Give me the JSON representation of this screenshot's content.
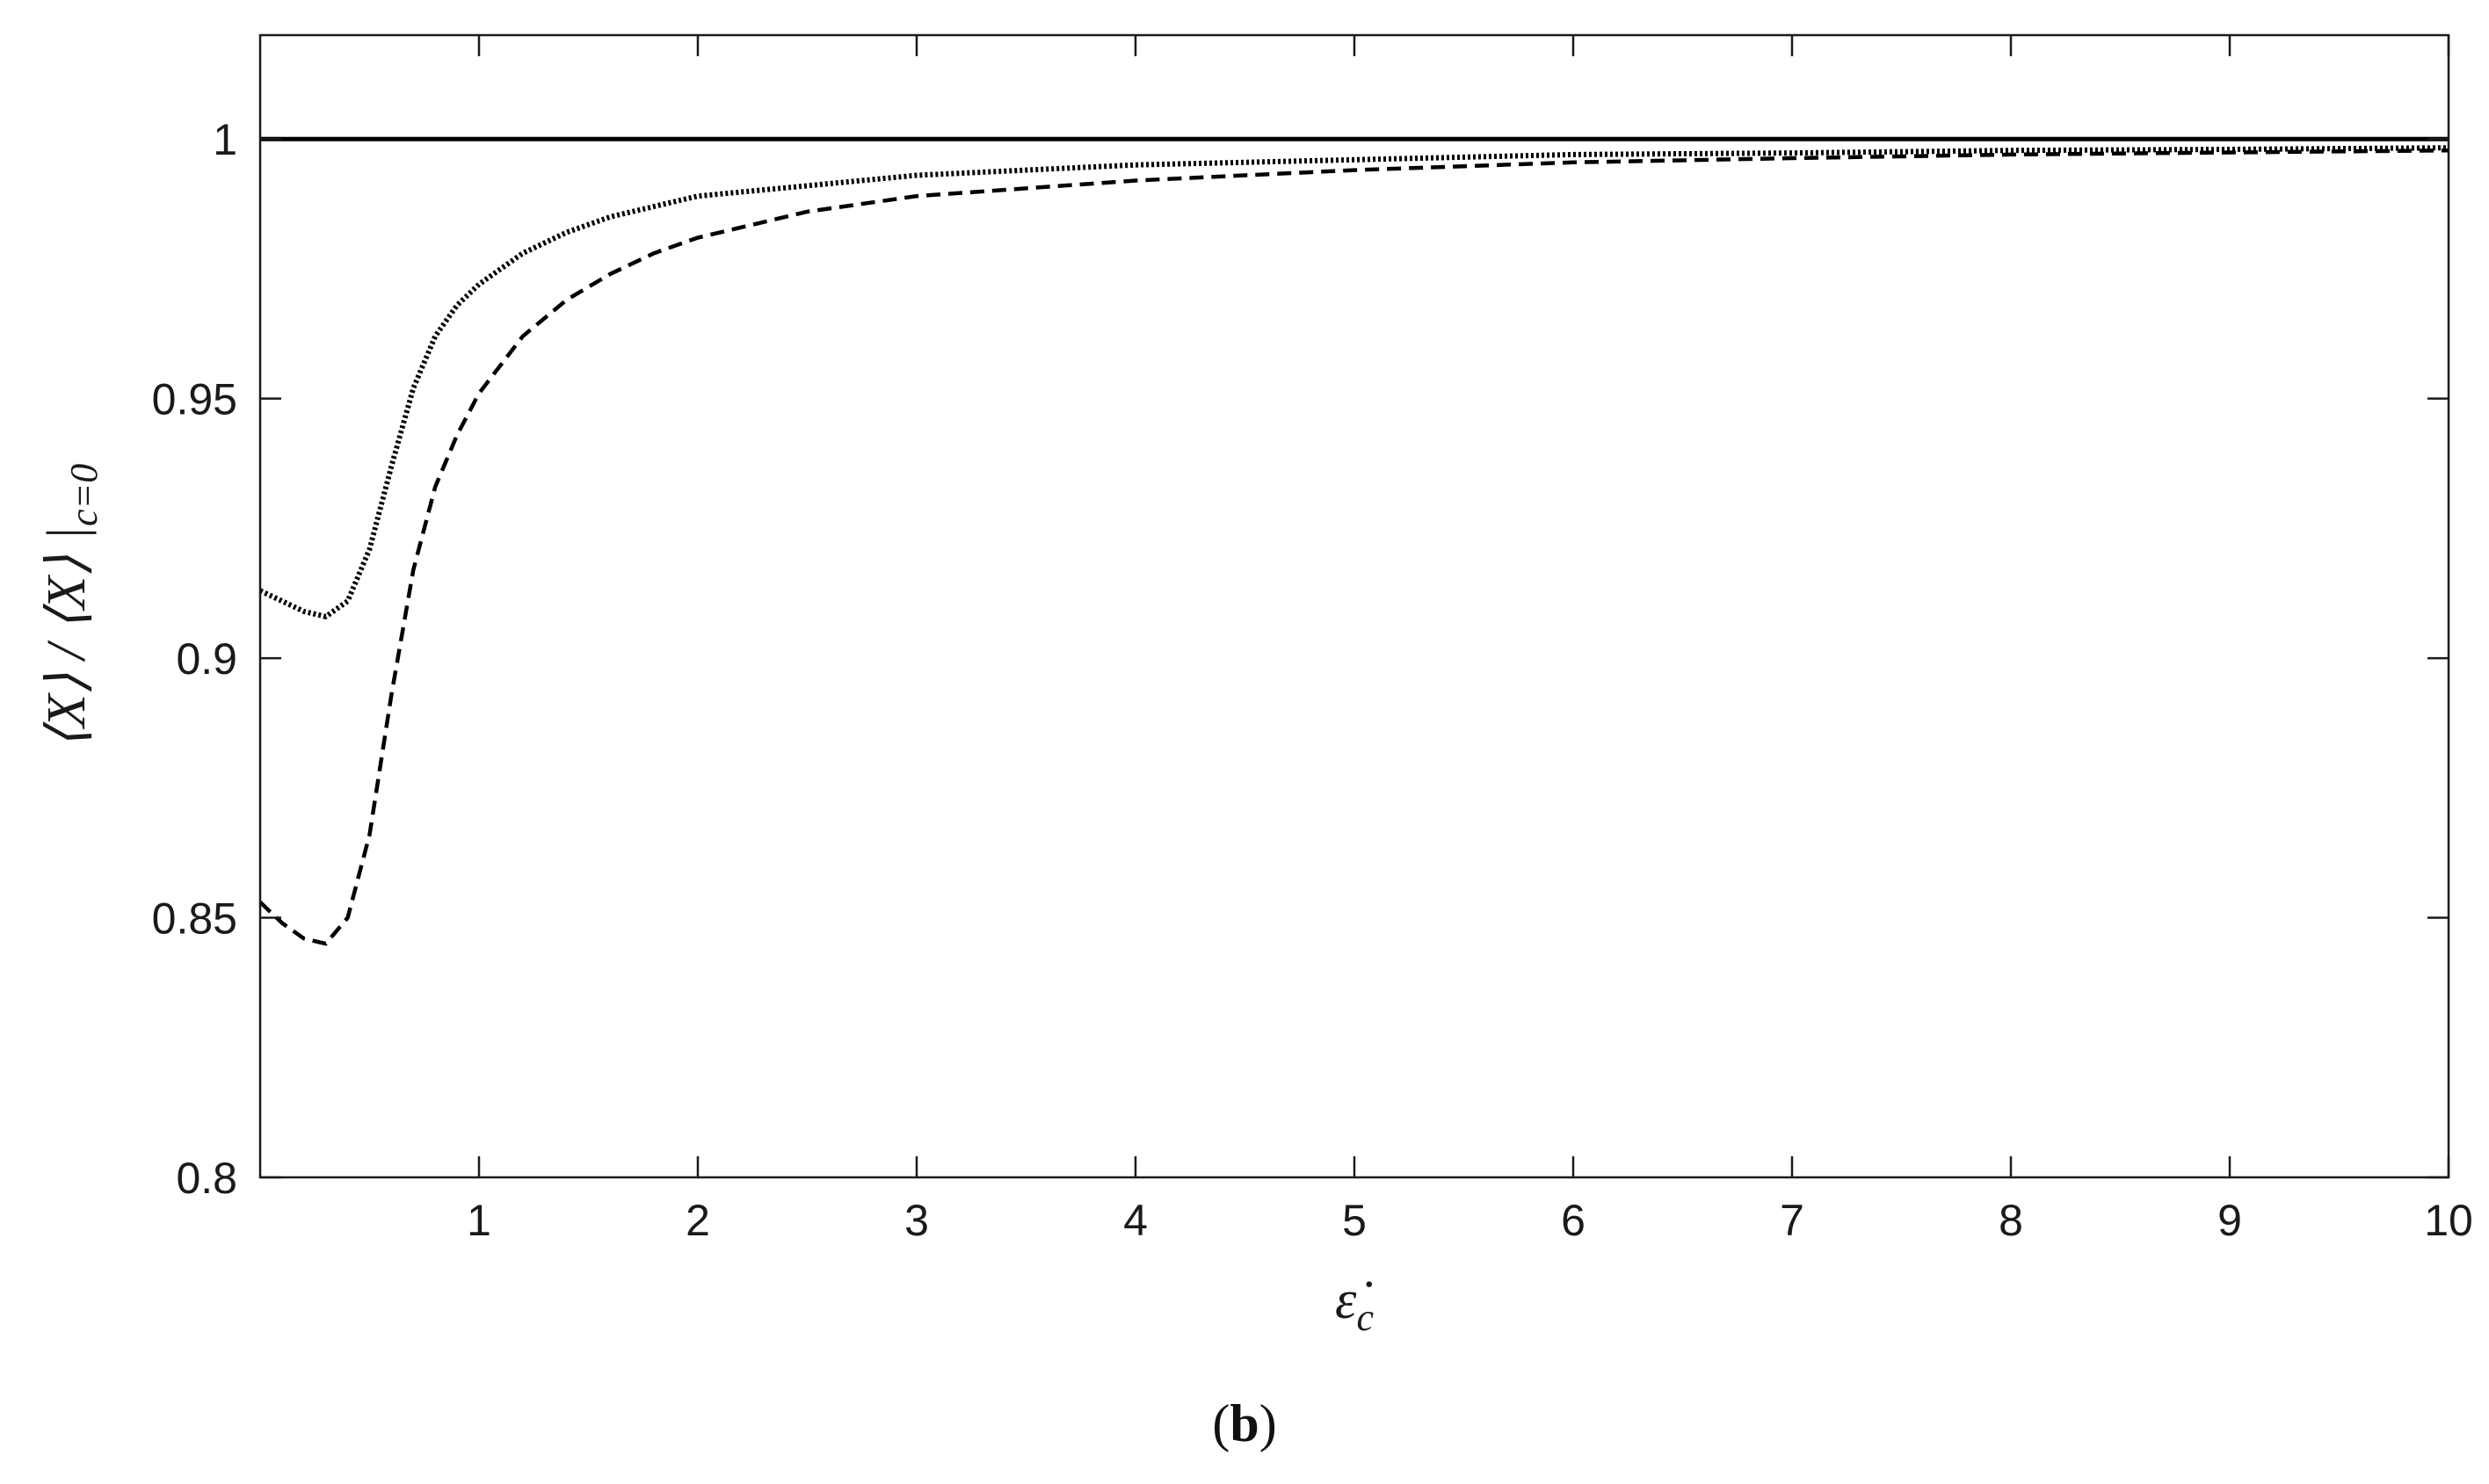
{
  "chart_data": {
    "type": "line",
    "title": "",
    "xlabel": "ε̇c",
    "ylabel": "⟨X⟩ / ⟨X⟩ |c=0",
    "ylabel_parts": {
      "main": "⟨X⟩ / ⟨X⟩ |",
      "subscript": "c=0"
    },
    "xlabel_parts": {
      "main": "ε̇",
      "subscript": "c"
    },
    "xlim": [
      0,
      10
    ],
    "ylim": [
      0.8,
      1.02
    ],
    "x_ticks": [
      1,
      2,
      3,
      4,
      5,
      6,
      7,
      8,
      9,
      10
    ],
    "y_ticks": [
      0.8,
      0.85,
      0.9,
      0.95,
      1
    ],
    "x_tick_labels": [
      "1",
      "2",
      "3",
      "4",
      "5",
      "6",
      "7",
      "8",
      "9",
      "10"
    ],
    "y_tick_labels": [
      "0.8",
      "0.85",
      "0.9",
      "0.95",
      "1"
    ],
    "grid": false,
    "legend": "none",
    "series": [
      {
        "style": "solid",
        "color": "#000000",
        "x": [
          0,
          10
        ],
        "y": [
          1.0,
          1.0
        ]
      },
      {
        "style": "dotted",
        "color": "#000000",
        "x": [
          0,
          0.1,
          0.2,
          0.3,
          0.4,
          0.5,
          0.6,
          0.7,
          0.8,
          0.9,
          1.0,
          1.2,
          1.4,
          1.6,
          1.8,
          2.0,
          2.5,
          3.0,
          4.0,
          5.0,
          6.0,
          7.0,
          8.0,
          9.0,
          10.0
        ],
        "y": [
          0.913,
          0.911,
          0.909,
          0.908,
          0.911,
          0.921,
          0.937,
          0.952,
          0.962,
          0.968,
          0.972,
          0.978,
          0.982,
          0.985,
          0.987,
          0.989,
          0.991,
          0.993,
          0.995,
          0.996,
          0.997,
          0.9973,
          0.9978,
          0.998,
          0.9983
        ]
      },
      {
        "style": "dashed",
        "color": "#000000",
        "x": [
          0,
          0.1,
          0.2,
          0.3,
          0.4,
          0.5,
          0.6,
          0.7,
          0.8,
          0.9,
          1.0,
          1.2,
          1.4,
          1.6,
          1.8,
          2.0,
          2.5,
          3.0,
          4.0,
          5.0,
          6.0,
          7.0,
          8.0,
          9.0,
          10.0
        ],
        "y": [
          0.853,
          0.849,
          0.846,
          0.845,
          0.85,
          0.866,
          0.893,
          0.917,
          0.933,
          0.943,
          0.951,
          0.962,
          0.969,
          0.974,
          0.978,
          0.981,
          0.986,
          0.989,
          0.992,
          0.994,
          0.9955,
          0.9963,
          0.997,
          0.9974,
          0.9978
        ]
      }
    ]
  },
  "caption": {
    "open": "(",
    "letter": "b",
    "close": ")"
  }
}
